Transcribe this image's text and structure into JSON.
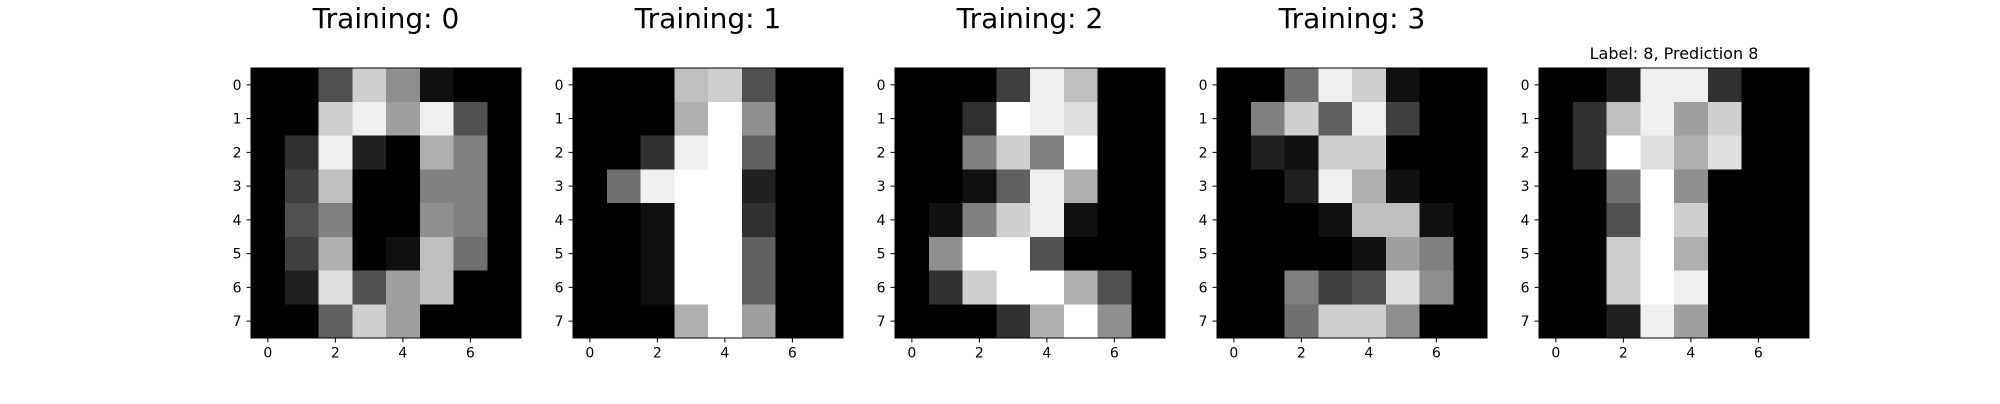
{
  "chart_data": [
    {
      "type": "heatmap",
      "title": "Training: 0",
      "x_ticks": [
        0,
        2,
        4,
        6
      ],
      "y_ticks": [
        0,
        1,
        2,
        3,
        4,
        5,
        6,
        7
      ],
      "value_range": [
        0,
        16
      ],
      "colormap": "grayscale",
      "grid": false,
      "values": [
        [
          0,
          0,
          5,
          13,
          9,
          1,
          0,
          0
        ],
        [
          0,
          0,
          13,
          15,
          10,
          15,
          5,
          0
        ],
        [
          0,
          3,
          15,
          2,
          0,
          11,
          8,
          0
        ],
        [
          0,
          4,
          12,
          0,
          0,
          8,
          8,
          0
        ],
        [
          0,
          5,
          8,
          0,
          0,
          9,
          8,
          0
        ],
        [
          0,
          4,
          11,
          0,
          1,
          12,
          7,
          0
        ],
        [
          0,
          2,
          14,
          5,
          10,
          12,
          0,
          0
        ],
        [
          0,
          0,
          6,
          13,
          10,
          0,
          0,
          0
        ]
      ]
    },
    {
      "type": "heatmap",
      "title": "Training: 1",
      "x_ticks": [
        0,
        2,
        4,
        6
      ],
      "y_ticks": [
        0,
        1,
        2,
        3,
        4,
        5,
        6,
        7
      ],
      "value_range": [
        0,
        16
      ],
      "colormap": "grayscale",
      "grid": false,
      "values": [
        [
          0,
          0,
          0,
          12,
          13,
          5,
          0,
          0
        ],
        [
          0,
          0,
          0,
          11,
          16,
          9,
          0,
          0
        ],
        [
          0,
          0,
          3,
          15,
          16,
          6,
          0,
          0
        ],
        [
          0,
          7,
          15,
          16,
          16,
          2,
          0,
          0
        ],
        [
          0,
          0,
          1,
          16,
          16,
          3,
          0,
          0
        ],
        [
          0,
          0,
          1,
          16,
          16,
          6,
          0,
          0
        ],
        [
          0,
          0,
          1,
          16,
          16,
          6,
          0,
          0
        ],
        [
          0,
          0,
          0,
          11,
          16,
          10,
          0,
          0
        ]
      ]
    },
    {
      "type": "heatmap",
      "title": "Training: 2",
      "x_ticks": [
        0,
        2,
        4,
        6
      ],
      "y_ticks": [
        0,
        1,
        2,
        3,
        4,
        5,
        6,
        7
      ],
      "value_range": [
        0,
        16
      ],
      "colormap": "grayscale",
      "grid": false,
      "values": [
        [
          0,
          0,
          0,
          4,
          15,
          12,
          0,
          0
        ],
        [
          0,
          0,
          3,
          16,
          15,
          14,
          0,
          0
        ],
        [
          0,
          0,
          8,
          13,
          8,
          16,
          0,
          0
        ],
        [
          0,
          0,
          1,
          6,
          15,
          11,
          0,
          0
        ],
        [
          0,
          1,
          8,
          13,
          15,
          1,
          0,
          0
        ],
        [
          0,
          9,
          16,
          16,
          5,
          0,
          0,
          0
        ],
        [
          0,
          3,
          13,
          16,
          16,
          11,
          5,
          0
        ],
        [
          0,
          0,
          0,
          3,
          11,
          16,
          9,
          0
        ]
      ]
    },
    {
      "type": "heatmap",
      "title": "Training: 3",
      "x_ticks": [
        0,
        2,
        4,
        6
      ],
      "y_ticks": [
        0,
        1,
        2,
        3,
        4,
        5,
        6,
        7
      ],
      "value_range": [
        0,
        16
      ],
      "colormap": "grayscale",
      "grid": false,
      "values": [
        [
          0,
          0,
          7,
          15,
          13,
          1,
          0,
          0
        ],
        [
          0,
          8,
          13,
          6,
          15,
          4,
          0,
          0
        ],
        [
          0,
          2,
          1,
          13,
          13,
          0,
          0,
          0
        ],
        [
          0,
          0,
          2,
          15,
          11,
          1,
          0,
          0
        ],
        [
          0,
          0,
          0,
          1,
          12,
          12,
          1,
          0
        ],
        [
          0,
          0,
          0,
          0,
          1,
          10,
          8,
          0
        ],
        [
          0,
          0,
          8,
          4,
          5,
          14,
          9,
          0
        ],
        [
          0,
          0,
          7,
          13,
          13,
          9,
          0,
          0
        ]
      ]
    },
    {
      "type": "heatmap",
      "title": "Label: 8, Prediction 8",
      "x_ticks": [
        0,
        2,
        4,
        6
      ],
      "y_ticks": [
        0,
        1,
        2,
        3,
        4,
        5,
        6,
        7
      ],
      "value_range": [
        0,
        16
      ],
      "colormap": "grayscale",
      "grid": false,
      "values": [
        [
          0,
          0,
          2,
          15,
          15,
          3,
          0,
          0
        ],
        [
          0,
          3,
          12,
          15,
          10,
          13,
          0,
          0
        ],
        [
          0,
          3,
          16,
          14,
          11,
          14,
          0,
          0
        ],
        [
          0,
          0,
          7,
          16,
          9,
          0,
          0,
          0
        ],
        [
          0,
          0,
          5,
          16,
          13,
          0,
          0,
          0
        ],
        [
          0,
          0,
          13,
          16,
          11,
          0,
          0,
          0
        ],
        [
          0,
          0,
          13,
          16,
          15,
          0,
          0,
          0
        ],
        [
          0,
          0,
          2,
          15,
          10,
          0,
          0,
          0
        ]
      ]
    }
  ]
}
